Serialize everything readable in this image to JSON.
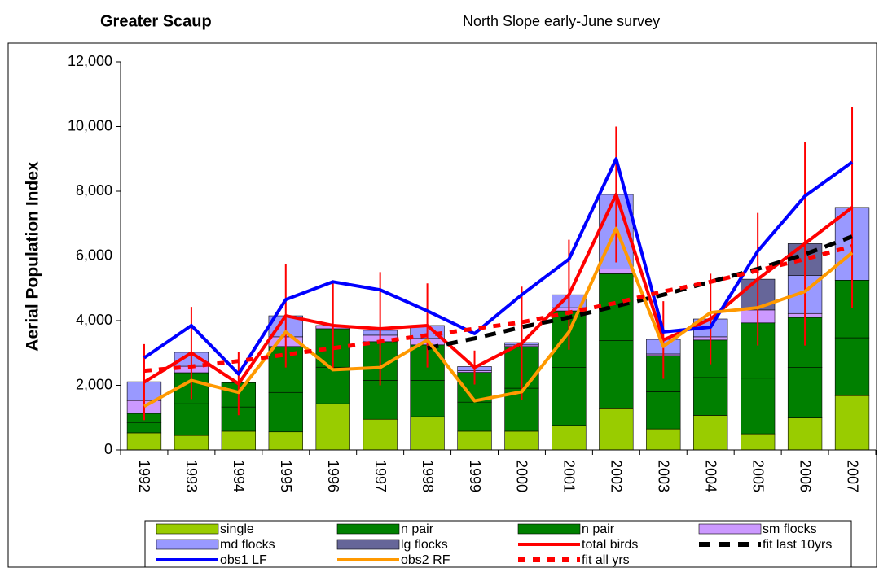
{
  "chart_data": {
    "type": "bar",
    "title": "Greater Scaup",
    "subtitle": "North Slope early-June survey",
    "ylabel": "Aerial Population Index",
    "categories": [
      "1992",
      "1993",
      "1994",
      "1995",
      "1996",
      "1997",
      "1998",
      "1999",
      "2000",
      "2001",
      "2002",
      "2003",
      "2004",
      "2005",
      "2006",
      "2007"
    ],
    "ylim": [
      0,
      12000
    ],
    "yticks": [
      0,
      {
        "value": 2000,
        "label": "2,000"
      },
      {
        "value": 4000,
        "label": "4,000"
      },
      {
        "value": 6000,
        "label": "6,000"
      },
      {
        "value": 8000,
        "label": "8,000"
      },
      {
        "value": 10000,
        "label": "10,000"
      },
      {
        "value": 12000,
        "label": "12,000"
      }
    ],
    "series": [
      {
        "name": "single",
        "kind": "bar",
        "color": "#99cc00",
        "values": [
          530,
          450,
          580,
          560,
          1430,
          950,
          1030,
          580,
          580,
          760,
          1300,
          650,
          1070,
          500,
          990,
          1680
        ]
      },
      {
        "name": "n pair",
        "kind": "bar",
        "color": "#008000",
        "values": [
          320,
          980,
          750,
          1220,
          1130,
          1200,
          1120,
          900,
          1330,
          1790,
          2080,
          1150,
          1170,
          1720,
          1560,
          1790
        ]
      },
      {
        "name": "n pair",
        "kind": "bar",
        "color": "#008000",
        "values": [
          280,
          960,
          750,
          1420,
          1190,
          1200,
          1100,
          920,
          1290,
          1750,
          2070,
          1120,
          1160,
          1710,
          1550,
          1780
        ]
      },
      {
        "name": "sm flocks",
        "kind": "bar",
        "color": "#cc99ff",
        "values": [
          400,
          200,
          0,
          300,
          100,
          200,
          200,
          50,
          50,
          100,
          150,
          50,
          100,
          400,
          120,
          0
        ]
      },
      {
        "name": "md flocks",
        "kind": "bar",
        "color": "#9999ff",
        "values": [
          580,
          430,
          0,
          650,
          0,
          150,
          400,
          130,
          70,
          400,
          2300,
          450,
          550,
          0,
          1180,
          2250
        ]
      },
      {
        "name": "lg flocks",
        "kind": "bar",
        "color": "#666699",
        "values": [
          0,
          0,
          0,
          0,
          0,
          0,
          0,
          0,
          0,
          0,
          0,
          0,
          0,
          950,
          980,
          0
        ]
      },
      {
        "name": "total birds",
        "kind": "line",
        "color": "#ff0000",
        "values": [
          2100,
          3000,
          2050,
          4150,
          3850,
          3750,
          3850,
          2550,
          3300,
          4800,
          7900,
          3400,
          4050,
          5280,
          6380,
          7500
        ],
        "errors": [
          1175,
          1425,
          975,
          1600,
          1400,
          1750,
          1300,
          525,
          1750,
          1700,
          2100,
          1200,
          1400,
          2050,
          3150,
          3100
        ]
      },
      {
        "name": "fit last 10yrs",
        "kind": "line",
        "dash": "14,10",
        "color": "#000000",
        "values": [
          null,
          null,
          null,
          null,
          null,
          null,
          3150,
          3450,
          3800,
          4100,
          4450,
          4800,
          5200,
          5600,
          6050,
          6600
        ]
      },
      {
        "name": "obs1 LF",
        "kind": "line",
        "color": "#0000ff",
        "values": [
          2850,
          3850,
          2350,
          4650,
          5200,
          4950,
          4300,
          3600,
          4800,
          5900,
          9000,
          3650,
          3800,
          6150,
          7850,
          8900
        ]
      },
      {
        "name": "obs2 RF",
        "kind": "line",
        "color": "#ff9900",
        "values": [
          1350,
          2150,
          1780,
          3650,
          2480,
          2550,
          3400,
          1520,
          1800,
          3650,
          6850,
          3200,
          4250,
          4400,
          4900,
          6100
        ]
      },
      {
        "name": "fit all yrs",
        "kind": "line",
        "dash": "9,9",
        "color": "#ff0000",
        "values": [
          2450,
          2580,
          2750,
          2950,
          3150,
          3350,
          3550,
          3750,
          3950,
          4250,
          4550,
          4900,
          5200,
          5550,
          5900,
          6300
        ]
      }
    ]
  }
}
